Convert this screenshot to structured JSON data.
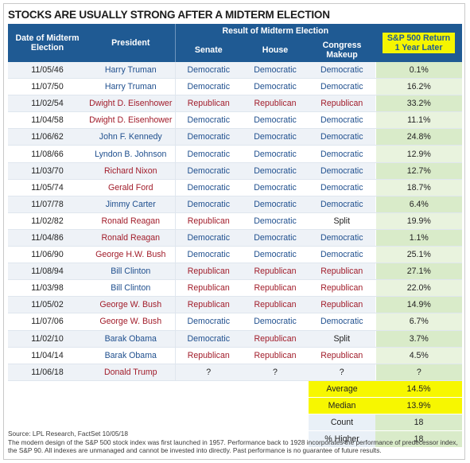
{
  "title": "STOCKS ARE USUALLY STRONG AFTER A MIDTERM ELECTION",
  "headers": {
    "date": "Date of Midterm Election",
    "president": "President",
    "group": "Result of Midterm Election",
    "senate": "Senate",
    "house": "House",
    "congress": "Congress Makeup",
    "return_line1": "S&P 500 Return",
    "return_line2": "1 Year Later"
  },
  "rows": [
    {
      "date": "11/05/46",
      "president": "Harry Truman",
      "party": "D",
      "senate": "Democratic",
      "house": "Democratic",
      "congress": "Democratic",
      "ret": "0.1%"
    },
    {
      "date": "11/07/50",
      "president": "Harry Truman",
      "party": "D",
      "senate": "Democratic",
      "house": "Democratic",
      "congress": "Democratic",
      "ret": "16.2%"
    },
    {
      "date": "11/02/54",
      "president": "Dwight D. Eisenhower",
      "party": "R",
      "senate": "Republican",
      "house": "Republican",
      "congress": "Republican",
      "ret": "33.2%"
    },
    {
      "date": "11/04/58",
      "president": "Dwight D. Eisenhower",
      "party": "R",
      "senate": "Democratic",
      "house": "Democratic",
      "congress": "Democratic",
      "ret": "11.1%"
    },
    {
      "date": "11/06/62",
      "president": "John F. Kennedy",
      "party": "D",
      "senate": "Democratic",
      "house": "Democratic",
      "congress": "Democratic",
      "ret": "24.8%"
    },
    {
      "date": "11/08/66",
      "president": "Lyndon B. Johnson",
      "party": "D",
      "senate": "Democratic",
      "house": "Democratic",
      "congress": "Democratic",
      "ret": "12.9%"
    },
    {
      "date": "11/03/70",
      "president": "Richard Nixon",
      "party": "R",
      "senate": "Democratic",
      "house": "Democratic",
      "congress": "Democratic",
      "ret": "12.7%"
    },
    {
      "date": "11/05/74",
      "president": "Gerald Ford",
      "party": "R",
      "senate": "Democratic",
      "house": "Democratic",
      "congress": "Democratic",
      "ret": "18.7%"
    },
    {
      "date": "11/07/78",
      "president": "Jimmy Carter",
      "party": "D",
      "senate": "Democratic",
      "house": "Democratic",
      "congress": "Democratic",
      "ret": "6.4%"
    },
    {
      "date": "11/02/82",
      "president": "Ronald Reagan",
      "party": "R",
      "senate": "Republican",
      "house": "Democratic",
      "congress": "Split",
      "ret": "19.9%"
    },
    {
      "date": "11/04/86",
      "president": "Ronald Reagan",
      "party": "R",
      "senate": "Democratic",
      "house": "Democratic",
      "congress": "Democratic",
      "ret": "1.1%"
    },
    {
      "date": "11/06/90",
      "president": "George H.W. Bush",
      "party": "R",
      "senate": "Democratic",
      "house": "Democratic",
      "congress": "Democratic",
      "ret": "25.1%"
    },
    {
      "date": "11/08/94",
      "president": "Bill Clinton",
      "party": "D",
      "senate": "Republican",
      "house": "Republican",
      "congress": "Republican",
      "ret": "27.1%"
    },
    {
      "date": "11/03/98",
      "president": "Bill Clinton",
      "party": "D",
      "senate": "Republican",
      "house": "Republican",
      "congress": "Republican",
      "ret": "22.0%"
    },
    {
      "date": "11/05/02",
      "president": "George W. Bush",
      "party": "R",
      "senate": "Republican",
      "house": "Republican",
      "congress": "Republican",
      "ret": "14.9%"
    },
    {
      "date": "11/07/06",
      "president": "George W. Bush",
      "party": "R",
      "senate": "Democratic",
      "house": "Democratic",
      "congress": "Democratic",
      "ret": "6.7%"
    },
    {
      "date": "11/02/10",
      "president": "Barak Obama",
      "party": "D",
      "senate": "Democratic",
      "house": "Republican",
      "congress": "Split",
      "ret": "3.7%"
    },
    {
      "date": "11/04/14",
      "president": "Barak Obama",
      "party": "D",
      "senate": "Republican",
      "house": "Republican",
      "congress": "Republican",
      "ret": "4.5%"
    },
    {
      "date": "11/06/18",
      "president": "Donald Trump",
      "party": "R",
      "senate": "?",
      "house": "?",
      "congress": "?",
      "ret": "?"
    }
  ],
  "summary": [
    {
      "label": "Average",
      "value": "14.5%",
      "highlight": true
    },
    {
      "label": "Median",
      "value": "13.9%",
      "highlight": true
    },
    {
      "label": "Count",
      "value": "18",
      "highlight": false
    },
    {
      "label": "% Higher",
      "value": "18",
      "highlight": false
    }
  ],
  "colors": {
    "header": "#1f5a93",
    "democratic": "#1f4f8e",
    "republican": "#a11c2a",
    "highlight": "#f7f700",
    "return_column": "#d9ebc9"
  },
  "footer": {
    "source": "Source: LPL Research, FactSet  10/05/18",
    "disclaimer": "The modern design of the S&P 500 stock index was first launched in 1957. Performance back to 1928 incorporates the performance of predecessor index, the S&P 90. All indexes are unmanaged and cannot be invested into directly. Past performance is no guarantee of future results."
  }
}
